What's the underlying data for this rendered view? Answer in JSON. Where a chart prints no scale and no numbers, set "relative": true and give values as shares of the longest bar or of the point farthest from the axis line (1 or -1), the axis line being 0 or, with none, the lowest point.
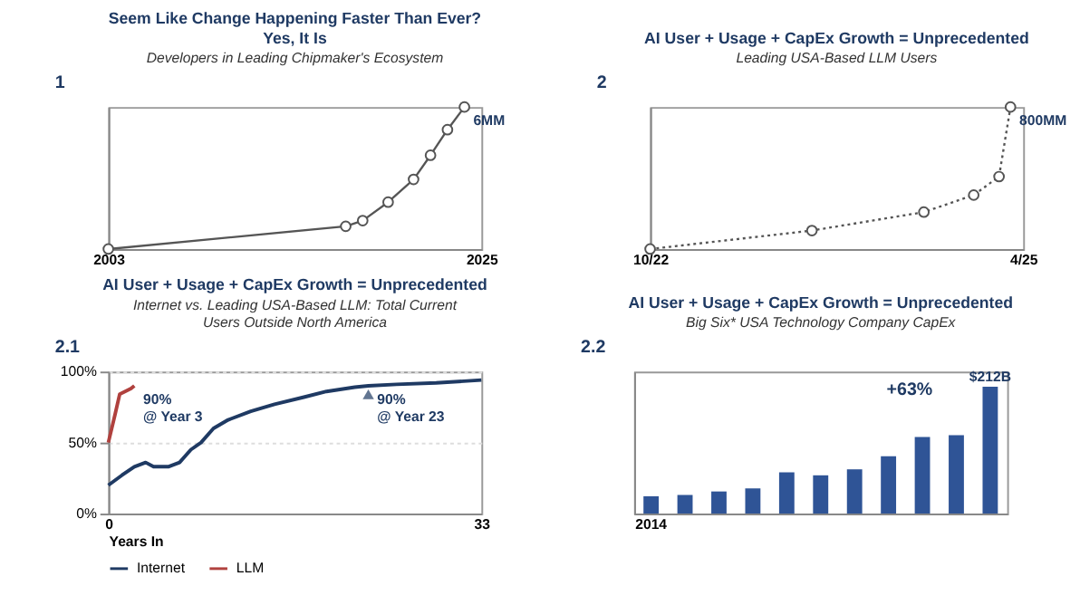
{
  "chart_data": [
    {
      "type": "line",
      "title": "Seem Like Change Happening Faster Than Ever? Yes, It Is",
      "subtitle": "Developers in Leading Chipmaker's Ecosystem",
      "relative": true,
      "marker": "circle",
      "line_style": "solid",
      "grid": false,
      "xlim": [
        2003,
        2025
      ],
      "xticks": [
        2003,
        2025
      ],
      "series": [
        {
          "color": "#555555",
          "x": [
            2003,
            2017,
            2018,
            2019.5,
            2021,
            2022,
            2023,
            2024
          ],
          "values": [
            0,
            0.16,
            0.2,
            0.33,
            0.49,
            0.66,
            0.84,
            1
          ]
        }
      ],
      "annotations": [
        "1",
        {
          "text": "6MM",
          "x": 2024,
          "y": 1
        }
      ]
    },
    {
      "type": "line",
      "title": "AI User + Usage + CapEx Growth = Unprecedented",
      "subtitle": "Leading USA-Based LLM Users",
      "relative": true,
      "marker": "circle",
      "line_style": "dotted",
      "grid": false,
      "xlim": [
        "2022-10",
        "2025-04"
      ],
      "xticks": [
        {
          "value": "2022-10",
          "label": "10/22"
        },
        {
          "value": "2025-04",
          "label": "4/25"
        }
      ],
      "series": [
        {
          "color": "#555555",
          "x": [
            "2022-10",
            "2023-11",
            "2024-08",
            "2024-12",
            "2025-02",
            "2025-03"
          ],
          "values": [
            0,
            0.13,
            0.26,
            0.38,
            0.51,
            1
          ]
        }
      ],
      "annotations": [
        "2",
        {
          "text": "800MM",
          "x": "2025-03",
          "y": 1
        }
      ]
    },
    {
      "type": "line",
      "title": "AI User + Usage + CapEx Growth = Unprecedented",
      "subtitle": "Internet vs. Leading USA-Based LLM: Total Current Users Outside North America",
      "xlabel": "Years In",
      "legend": "bottom",
      "grid": "y",
      "xlim": [
        0,
        33
      ],
      "xticks": [
        0,
        33
      ],
      "ylim": [
        0,
        100
      ],
      "yticks": [
        {
          "value": 0,
          "label": "0%"
        },
        {
          "value": 50,
          "label": "50%"
        },
        {
          "value": 100,
          "label": "100%"
        }
      ],
      "series": [
        {
          "name": "Internet",
          "color": "#1f3a63",
          "x": [
            0,
            1.2,
            2.3,
            3.3,
            4,
            5.3,
            6.3,
            7.3,
            8.2,
            9.3,
            10.6,
            12.6,
            14.7,
            17.3,
            19.3,
            21.8,
            23,
            25.5,
            29,
            33
          ],
          "values": [
            20,
            27,
            33,
            36,
            33,
            33,
            36,
            45,
            50,
            60,
            66,
            72,
            77,
            82,
            86,
            89,
            90,
            91,
            92,
            94
          ]
        },
        {
          "name": "LLM",
          "color": "#b0413e",
          "x": [
            0,
            0.6,
            1,
            2,
            2.3
          ],
          "values": [
            50,
            70,
            84,
            88,
            90
          ]
        },
        {
          "type": "scatter",
          "marker": "triangle",
          "color": "#1f3a63",
          "x": [
            23
          ],
          "values": [
            84
          ]
        }
      ],
      "annotations": [
        "2.1",
        {
          "text": "90% @ Year 3",
          "x": 2.3,
          "y": 90
        },
        {
          "text": "90% @ Year 23",
          "x": 23,
          "y": 90
        }
      ]
    },
    {
      "type": "bar",
      "title": "AI User + Usage + CapEx Growth = Unprecedented",
      "subtitle": "Big Six* USA Technology Company CapEx",
      "color": "#2f5496",
      "categories": [
        "2014",
        null,
        null,
        null,
        null,
        null,
        null,
        null,
        null,
        null,
        null
      ],
      "values": [
        29,
        31,
        37,
        42,
        69,
        64,
        74,
        96,
        128,
        131,
        212
      ],
      "value_labels": [
        null,
        null,
        null,
        null,
        null,
        null,
        null,
        null,
        null,
        null,
        "$212B"
      ],
      "annotations": [
        "2.2",
        "+63%"
      ]
    }
  ]
}
